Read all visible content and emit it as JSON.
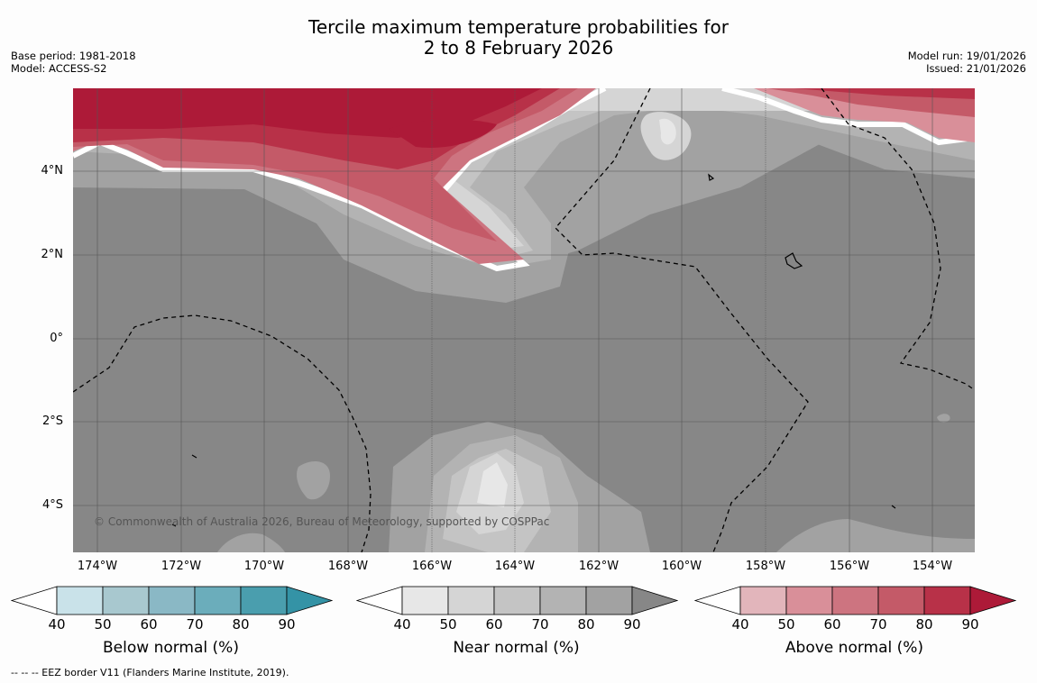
{
  "title_line1": "Tercile maximum temperature probabilities for",
  "title_line2": "2 to 8 February 2026",
  "base_period": "Base period: 1981-2018",
  "model": "Model: ACCESS-S2",
  "model_run": "Model run: 19/01/2026",
  "issued": "Issued: 21/01/2026",
  "copyright": "© Commonwealth of Australia 2026, Bureau of Meteorology, supported by COSPPac",
  "footnote": "--  --  -- EEZ border V11 (Flanders Marine Institute, 2019).",
  "lat_labels": [
    "4°N",
    "2°N",
    "0°",
    "2°S",
    "4°S"
  ],
  "lon_labels": [
    "174°W",
    "172°W",
    "170°W",
    "168°W",
    "166°W",
    "164°W",
    "162°W",
    "160°W",
    "158°W",
    "156°W",
    "154°W"
  ],
  "colorbars": [
    {
      "title": "Below normal (%)",
      "ticks": [
        "40",
        "50",
        "60",
        "70",
        "80",
        "90"
      ],
      "colors": [
        "#ffffff",
        "#c9e2e9",
        "#a8c8cf",
        "#8ab8c5",
        "#6badbb",
        "#4a9eae",
        "#3493a6"
      ]
    },
    {
      "title": "Near normal (%)",
      "ticks": [
        "40",
        "50",
        "60",
        "70",
        "80",
        "90"
      ],
      "colors": [
        "#ffffff",
        "#e7e7e7",
        "#d5d5d5",
        "#c4c4c4",
        "#b3b3b3",
        "#a2a2a2",
        "#878787"
      ]
    },
    {
      "title": "Above normal (%)",
      "ticks": [
        "40",
        "50",
        "60",
        "70",
        "80",
        "90"
      ],
      "colors": [
        "#ffffff",
        "#e2b5bb",
        "#d98f99",
        "#cd7480",
        "#c45a68",
        "#b83148",
        "#ad1a38"
      ]
    }
  ]
}
